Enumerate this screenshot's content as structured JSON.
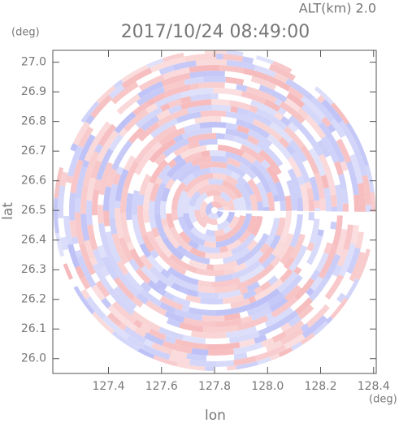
{
  "chart_data": {
    "type": "radar-field",
    "title": "2017/10/24 08:49:00",
    "annotation": "ALT(km) 2.0",
    "x_label": "lon",
    "y_label": "lat",
    "x_unit": "(deg)",
    "y_unit": "(deg)",
    "xlim": [
      127.19,
      128.41
    ],
    "ylim": [
      25.95,
      27.04
    ],
    "xticks": [
      127.4,
      127.6,
      127.8,
      {
        "value": 128,
        "label": "128.0"
      },
      128.2,
      128.4
    ],
    "yticks": [
      {
        "value": 26,
        "label": "26.0"
      },
      26.1,
      26.2,
      26.3,
      26.4,
      26.5,
      26.6,
      26.7,
      26.8,
      26.9,
      {
        "value": 27,
        "label": "27.0"
      }
    ],
    "colors": [
      "#f6b9bb",
      "#bcc0f6"
    ]
  }
}
